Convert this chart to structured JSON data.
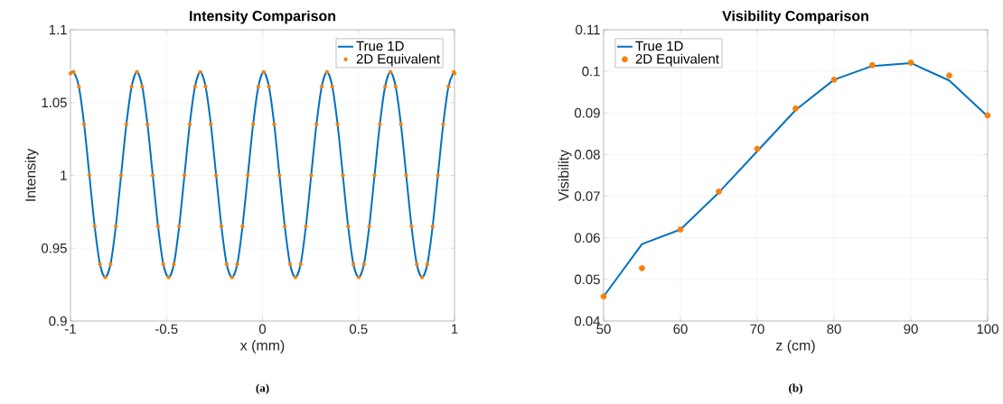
{
  "chart_data": [
    {
      "type": "line",
      "title": "Intensity Comparison",
      "xlabel": "x (mm)",
      "ylabel": "Intensity",
      "x": [
        -1,
        -0.984,
        -0.9565,
        -0.929,
        -0.9015,
        -0.874,
        -0.8465,
        -0.819,
        -0.7915,
        -0.764,
        -0.7365,
        -0.709,
        -0.6815,
        -0.654,
        -0.6265,
        -0.599,
        -0.5715,
        -0.544,
        -0.5165,
        -0.489,
        -0.4615,
        -0.434,
        -0.4065,
        -0.379,
        -0.3515,
        -0.324,
        -0.2965,
        -0.269,
        -0.2415,
        -0.214,
        -0.1865,
        -0.159,
        -0.1315,
        -0.104,
        -0.0765,
        -0.049,
        -0.0215,
        0.006,
        0.0335,
        0.061,
        0.0885,
        0.116,
        0.1435,
        0.171,
        0.1985,
        0.226,
        0.2535,
        0.281,
        0.3085,
        0.336,
        0.3635,
        0.391,
        0.4185,
        0.446,
        0.4735,
        0.501,
        0.5285,
        0.556,
        0.5835,
        0.611,
        0.6385,
        0.666,
        0.6935,
        0.721,
        0.7485,
        0.776,
        0.8035,
        0.831,
        0.8585,
        0.886,
        0.9135,
        0.941,
        0.9685,
        0.996,
        1
      ],
      "series": [
        {
          "name": "True 1D",
          "color": "#0072bd",
          "line_style": "solid",
          "values": [
            1.07,
            1.071,
            1.061,
            1.035,
            1.0,
            0.965,
            0.939,
            0.93,
            0.939,
            0.965,
            1.0,
            1.035,
            1.061,
            1.071,
            1.061,
            1.035,
            1.0,
            0.965,
            0.939,
            0.93,
            0.939,
            0.965,
            1.0,
            1.035,
            1.061,
            1.071,
            1.061,
            1.035,
            1.0,
            0.965,
            0.939,
            0.93,
            0.939,
            0.965,
            1.0,
            1.035,
            1.061,
            1.071,
            1.061,
            1.035,
            1.0,
            0.965,
            0.939,
            0.93,
            0.939,
            0.965,
            1.0,
            1.035,
            1.061,
            1.071,
            1.061,
            1.035,
            1.0,
            0.965,
            0.939,
            0.93,
            0.939,
            0.965,
            1.0,
            1.035,
            1.061,
            1.071,
            1.061,
            1.035,
            1.0,
            0.965,
            0.939,
            0.93,
            0.939,
            0.965,
            1.0,
            1.035,
            1.061,
            1.071,
            1.07
          ]
        },
        {
          "name": "2D Equivalent",
          "type": "scatter",
          "color": "#f5820d",
          "marker": "circle",
          "values": [
            1.07,
            1.071,
            1.061,
            1.035,
            1.0,
            0.965,
            0.939,
            0.93,
            0.939,
            0.965,
            1.0,
            1.035,
            1.061,
            1.071,
            1.061,
            1.035,
            1.0,
            0.965,
            0.939,
            0.93,
            0.939,
            0.965,
            1.0,
            1.035,
            1.061,
            1.071,
            1.061,
            1.035,
            1.0,
            0.965,
            0.939,
            0.93,
            0.939,
            0.965,
            1.0,
            1.035,
            1.061,
            1.071,
            1.061,
            1.035,
            1.0,
            0.965,
            0.939,
            0.93,
            0.939,
            0.965,
            1.0,
            1.035,
            1.061,
            1.071,
            1.061,
            1.035,
            1.0,
            0.965,
            0.939,
            0.93,
            0.939,
            0.965,
            1.0,
            1.035,
            1.061,
            1.071,
            1.061,
            1.035,
            1.0,
            0.965,
            0.939,
            0.93,
            0.939,
            0.965,
            1.0,
            1.035,
            1.061,
            1.071,
            1.07
          ]
        }
      ],
      "xlim": [
        -1,
        1
      ],
      "ylim": [
        0.9,
        1.1
      ],
      "xticks": [
        -1,
        -0.5,
        0,
        0.5,
        1
      ],
      "yticks": [
        0.9,
        0.95,
        1,
        1.05,
        1.1
      ],
      "grid": true,
      "legend": "top right",
      "annotations": [
        "(a)"
      ]
    },
    {
      "type": "line",
      "title": "Visibility Comparison",
      "xlabel": "z (cm)",
      "ylabel": "Visibility",
      "x": [
        50,
        55,
        60,
        65,
        70,
        75,
        80,
        85,
        90,
        95,
        100
      ],
      "series": [
        {
          "name": "True 1D",
          "color": "#0072bd",
          "line_style": "solid",
          "values": [
            0.0459,
            0.0585,
            0.062,
            0.0709,
            0.0808,
            0.0907,
            0.098,
            0.1013,
            0.102,
            0.0978,
            0.0892
          ]
        },
        {
          "name": "2D Equivalent",
          "type": "scatter",
          "color": "#f5820d",
          "marker": "circle",
          "values": [
            0.0459,
            0.0527,
            0.062,
            0.0711,
            0.0814,
            0.0911,
            0.098,
            0.1015,
            0.1021,
            0.099,
            0.0894
          ]
        }
      ],
      "xlim": [
        50,
        100
      ],
      "ylim": [
        0.04,
        0.11
      ],
      "xticks": [
        50,
        60,
        70,
        80,
        90,
        100
      ],
      "yticks": [
        0.04,
        0.05,
        0.06,
        0.07,
        0.08,
        0.09,
        0.1,
        0.11
      ],
      "grid": true,
      "legend": "top left",
      "annotations": [
        "(b)"
      ]
    }
  ]
}
